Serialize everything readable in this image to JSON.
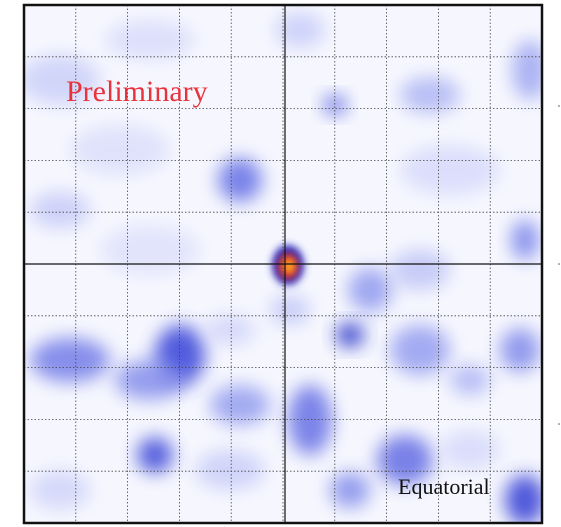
{
  "map": {
    "annotation": "Preliminary",
    "frame_label": "Equatorial"
  }
}
